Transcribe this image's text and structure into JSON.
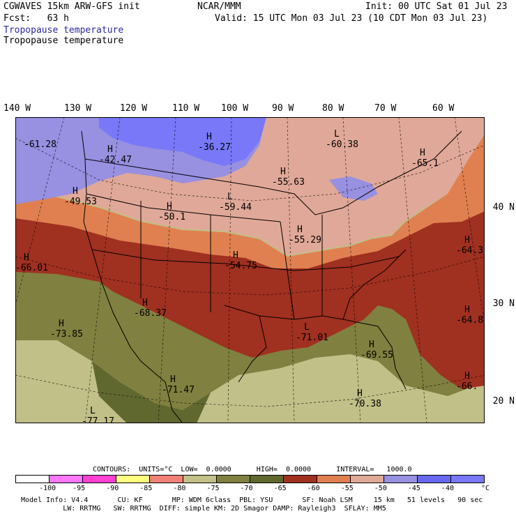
{
  "header": {
    "line1_left": "CGWAVES 15km ARW-GFS init",
    "line1_center": "NCAR/MMM",
    "line1_right": "Init: 00 UTC Sat 01 Jul 23",
    "line2_left": "Fcst:   63 h",
    "line2_right": "Valid: 15 UTC Mon 03 Jul 23 (10 CDT Mon 03 Jul 23)",
    "field_title": "Tropopause temperature",
    "field_subtitle": "Tropopause temperature"
  },
  "axes": {
    "lon_labels": [
      "140 W",
      "130 W",
      "120 W",
      "110 W",
      "100 W",
      "90 W",
      "80 W",
      "70 W",
      "60 W"
    ],
    "lat_labels": [
      "40 N",
      "30 N",
      "20 N"
    ]
  },
  "map_labels": [
    {
      "type": "",
      "value": "-61.28"
    },
    {
      "type": "H",
      "value": "-42.47"
    },
    {
      "type": "H",
      "value": "-36.27"
    },
    {
      "type": "L",
      "value": "-60.38"
    },
    {
      "type": "H",
      "value": "-55.63"
    },
    {
      "type": "H",
      "value": "-65.1"
    },
    {
      "type": "H",
      "value": "-49.53"
    },
    {
      "type": "H",
      "value": "-50.1"
    },
    {
      "type": "L",
      "value": "-59.44"
    },
    {
      "type": "H",
      "value": "-55.29"
    },
    {
      "type": "H",
      "value": "-64.3"
    },
    {
      "type": "H",
      "value": "-66.01"
    },
    {
      "type": "H",
      "value": "-54.75"
    },
    {
      "type": "H",
      "value": "-68.37"
    },
    {
      "type": "H",
      "value": "-64.8"
    },
    {
      "type": "H",
      "value": "-73.85"
    },
    {
      "type": "L",
      "value": "-71.01"
    },
    {
      "type": "H",
      "value": "-69.55"
    },
    {
      "type": "H",
      "value": "-66."
    },
    {
      "type": "H",
      "value": "-71.47"
    },
    {
      "type": "H",
      "value": "-70.38"
    },
    {
      "type": "L",
      "value": "-77.17"
    }
  ],
  "contour_info": "CONTOURS:  UNITS=°C  LOW=  0.0000      HIGH=  0.0000      INTERVAL=   1000.0",
  "colorbar": {
    "colors": [
      "#ffffff",
      "#ff78ff",
      "#ff40d0",
      "#ffff80",
      "#f08078",
      "#c0c088",
      "#808040",
      "#606830",
      "#a03020",
      "#e08050",
      "#e0a898",
      "#9890e0",
      "#6868f0",
      "#7878f8"
    ],
    "labels": [
      "-100",
      "-95",
      "-90",
      "-85",
      "-80",
      "-75",
      "-70",
      "-65",
      "-60",
      "-55",
      "-50",
      "-45",
      "-40"
    ],
    "unit": "°C"
  },
  "footer": {
    "line1": "Model Info: V4.4       CU: KF       MP: WDM 6class  PBL: YSU       SF: Noah LSM     15 km   51 levels   90 sec",
    "line2": "          LW: RRTMG   SW: RRTMG  DIFF: simple KM: 2D Smagor DAMP: Rayleigh3  SFLAY: MM5"
  }
}
